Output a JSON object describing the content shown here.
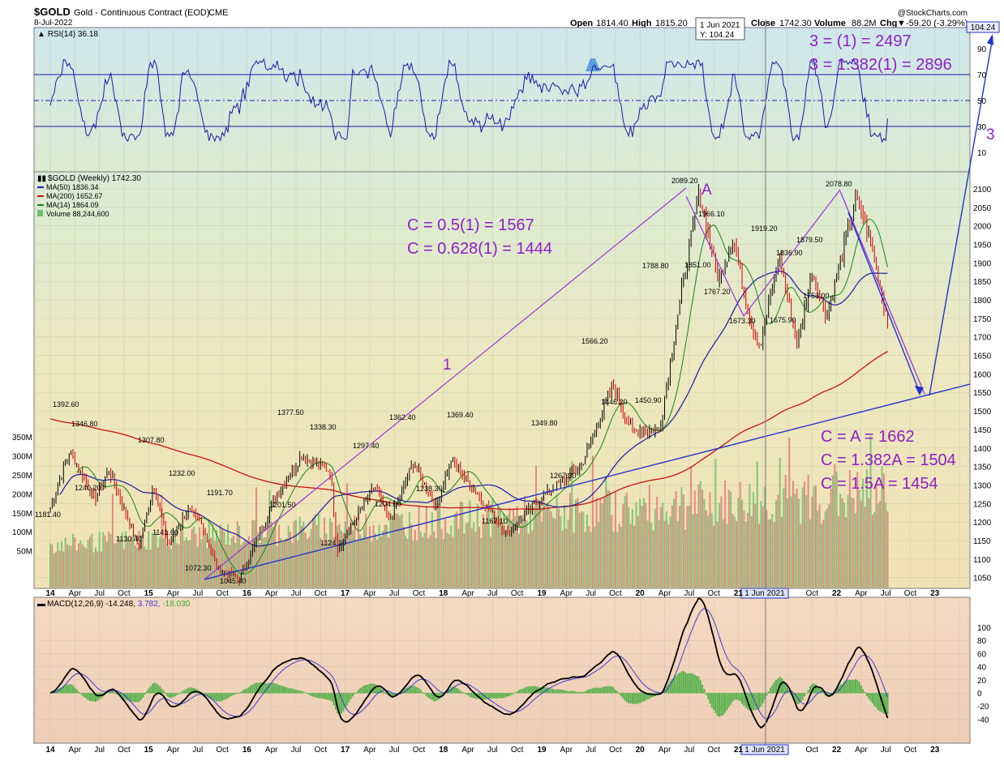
{
  "header": {
    "symbol": "$GOLD",
    "name": "Gold - Continuous Contract (EOD)",
    "exchange": "CME",
    "date": "8-Jul-2022",
    "watermark": "@StockCharts.com",
    "open_label": "Open",
    "open": "1814.40",
    "high_label": "High",
    "high": "1815.20",
    "close_label": "Close",
    "close": "1742.30",
    "volume_label": "Volume",
    "volume": "88.2M",
    "chg_label": "Chg",
    "chg": "-59.20 (-3.29%)",
    "chg_arrow": "▼"
  },
  "crosshair": {
    "date": "1 Jun 2021",
    "y": "Y: 104.24",
    "value_tag": "104.24",
    "axis_tag": "1 Jun 2021"
  },
  "rsi": {
    "label": "RSI(14) 36.18",
    "ticks": [
      "90",
      "70",
      "50",
      "30",
      "10"
    ]
  },
  "legend": {
    "price": "$GOLD (Weekly) 1742.30",
    "ma50": "MA(50) 1836.34",
    "ma200": "MA(200) 1652.67",
    "ma14": "MA(14) 1864.09",
    "volume": "Volume 88,244,600"
  },
  "price_axis": [
    "2100",
    "2050",
    "2000",
    "1950",
    "1900",
    "1850",
    "1800",
    "1750",
    "1700",
    "1650",
    "1600",
    "1550",
    "1500",
    "1450",
    "1400",
    "1350",
    "1300",
    "1250",
    "1200",
    "1150",
    "1100",
    "1050"
  ],
  "volume_axis": [
    "350M",
    "300M",
    "250M",
    "200M",
    "150M",
    "100M",
    "50M"
  ],
  "time_axis": [
    "14",
    "Apr",
    "Jul",
    "Oct",
    "15",
    "Apr",
    "Jul",
    "Oct",
    "16",
    "Apr",
    "Jul",
    "Oct",
    "17",
    "Apr",
    "Jul",
    "Oct",
    "18",
    "Apr",
    "Jul",
    "Oct",
    "19",
    "Apr",
    "Jul",
    "Oct",
    "20",
    "Apr",
    "Jul",
    "Oct",
    "21",
    "Oct",
    "22",
    "Apr",
    "Jul",
    "Oct",
    "23",
    "Apr"
  ],
  "macd": {
    "label_main": "MACD(12,26,9) -14.248,",
    "label_signal": "3.782,",
    "label_hist": "-18.030",
    "ticks": [
      "100",
      "80",
      "60",
      "40",
      "20",
      "0",
      "-20",
      "-40"
    ]
  },
  "price_labels": [
    "1392.60",
    "1346.80",
    "1307.80",
    "1240.20",
    "1181.40",
    "1130.40",
    "1141.60",
    "1232.00",
    "1191.70",
    "1072.30",
    "1045.40",
    "1377.50",
    "1338.30",
    "1201.50",
    "1297.40",
    "1124.30",
    "1362.40",
    "1204.00",
    "1369.40",
    "1238.30",
    "1167.10",
    "1349.80",
    "1267.30",
    "1566.20",
    "1446.20",
    "1450.90",
    "1788.80",
    "2089.20",
    "1966.10",
    "1851.00",
    "1767.20",
    "1673.30",
    "1919.20",
    "1836.90",
    "1675.90",
    "1879.50",
    "1753.00",
    "2078.80"
  ],
  "annotations": {
    "c_retrace_1": "C = 0.5(1) = 1567",
    "c_retrace_2": "C = 0.628(1) = 1444",
    "c_eq_1": "C = A = 1662",
    "c_eq_2": "C = 1.382A = 1504",
    "c_eq_3": "C = 1.5A = 1454",
    "w3_1": "3 = (1) = 2497",
    "w3_2": "3 = 1.382(1) = 2896",
    "wave_1": "1",
    "wave_a": "A",
    "wave_3": "3"
  },
  "colors": {
    "price_up": "#000000",
    "price_down": "#cc0000",
    "ma50": "#1a1aa8",
    "ma200": "#cc1111",
    "ma14": "#118811",
    "volume_up": "#6fbf6f",
    "volume_down": "#e07a7a",
    "annotation": "#8e1ec8",
    "trendline": "#2233cc",
    "macd_line": "#000000",
    "signal_line": "#3b3bd8",
    "histogram": "#33aa33"
  },
  "chart_data": [
    {
      "type": "line",
      "title": "RSI(14) 36.18",
      "series": [
        {
          "name": "RSI(14)",
          "last": 36.18
        }
      ],
      "ylim": [
        0,
        100
      ],
      "reference_lines": [
        70,
        50,
        30
      ]
    },
    {
      "type": "line",
      "title": "$GOLD (Weekly) 1742.30",
      "categories": [
        "14",
        "15",
        "16",
        "17",
        "18",
        "19",
        "20",
        "21",
        "22",
        "23"
      ],
      "pivots": [
        {
          "x": "2014-03",
          "y": 1392.6
        },
        {
          "x": "2014-12",
          "y": 1130.4
        },
        {
          "x": "2015-12",
          "y": 1045.4
        },
        {
          "x": "2016-07",
          "y": 1377.5
        },
        {
          "x": "2016-12",
          "y": 1124.3
        },
        {
          "x": "2017-09",
          "y": 1362.4
        },
        {
          "x": "2018-01",
          "y": 1369.4
        },
        {
          "x": "2018-08",
          "y": 1167.1
        },
        {
          "x": "2019-09",
          "y": 1566.2
        },
        {
          "x": "2020-03",
          "y": 1450.9
        },
        {
          "x": "2020-08",
          "y": 2089.2
        },
        {
          "x": "2021-03",
          "y": 1673.3
        },
        {
          "x": "2021-06",
          "y": 1919.2
        },
        {
          "x": "2021-08",
          "y": 1675.9
        },
        {
          "x": "2022-03",
          "y": 2078.8
        },
        {
          "x": "2022-07",
          "y": 1742.3
        }
      ],
      "series": [
        {
          "name": "MA(50)",
          "last": 1836.34
        },
        {
          "name": "MA(200)",
          "last": 1652.67
        },
        {
          "name": "MA(14)",
          "last": 1864.09
        }
      ],
      "volume_last": 88244600,
      "ylim": [
        1020,
        2130
      ]
    },
    {
      "type": "line",
      "title": "MACD(12,26,9) -14.248, 3.782, -18.030",
      "series": [
        {
          "name": "MACD",
          "last": -14.248
        },
        {
          "name": "Signal",
          "last": 3.782
        },
        {
          "name": "Histogram",
          "last": -18.03
        }
      ],
      "ylim": [
        -50,
        100
      ]
    }
  ]
}
